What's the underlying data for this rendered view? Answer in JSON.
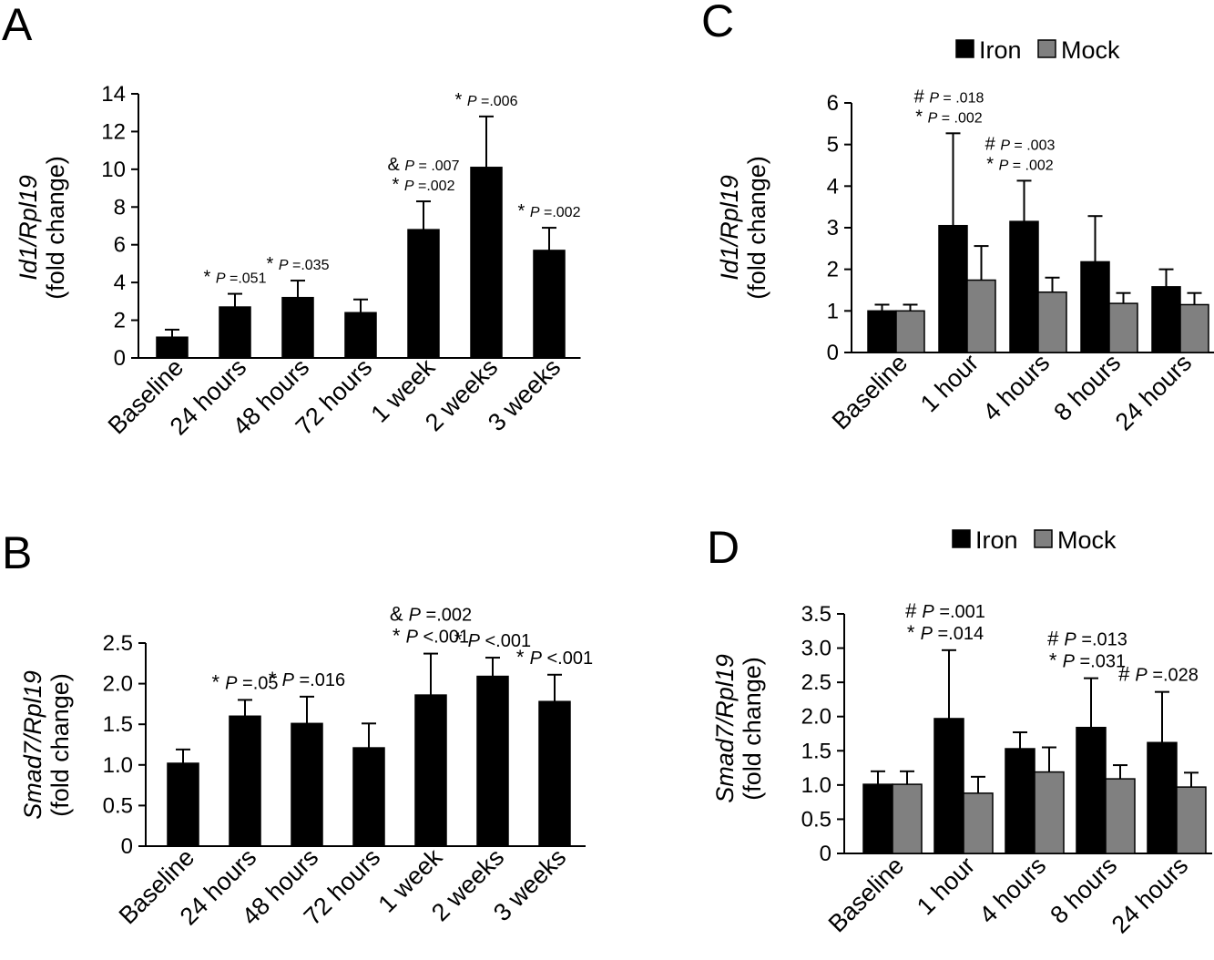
{
  "chart_data": [
    {
      "panel": "A",
      "type": "bar",
      "ylabel_gene": "Id1/Rpl19",
      "ylabel_unit": "(fold change)",
      "ylim": [
        0,
        14
      ],
      "yticks": [
        "0",
        "2",
        "4",
        "6",
        "8",
        "10",
        "12",
        "14"
      ],
      "categories": [
        "Baseline",
        "24 hours",
        "48 hours",
        "72 hours",
        "1 week",
        "2 weeks",
        "3 weeks"
      ],
      "series": [
        {
          "values": [
            1.1,
            2.7,
            3.2,
            2.4,
            6.8,
            10.1,
            5.7
          ],
          "errors": [
            0.4,
            0.7,
            0.9,
            0.7,
            1.5,
            2.7,
            1.2
          ]
        }
      ],
      "annotations": [
        {
          "index": 1,
          "lines": [
            {
              "sym": "*",
              "p": "P",
              "txt": "=.051"
            }
          ]
        },
        {
          "index": 2,
          "lines": [
            {
              "sym": "*",
              "p": "P",
              "txt": "=.035"
            }
          ]
        },
        {
          "index": 4,
          "lines": [
            {
              "sym": "&",
              "p": "P",
              "txt": "= .007"
            },
            {
              "sym": "*",
              "p": "P",
              "txt": "=.002"
            }
          ]
        },
        {
          "index": 5,
          "lines": [
            {
              "sym": "*",
              "p": "P",
              "txt": "=.006"
            }
          ]
        },
        {
          "index": 6,
          "lines": [
            {
              "sym": "*",
              "p": "P",
              "txt": "=.002"
            }
          ]
        }
      ]
    },
    {
      "panel": "B",
      "type": "bar",
      "ylabel_gene": "Smad7/Rpl19",
      "ylabel_unit": "(fold change)",
      "ylim": [
        0,
        2.5
      ],
      "yticks": [
        "0",
        "0.5",
        "1.0",
        "1.5",
        "2.0",
        "2.5"
      ],
      "categories": [
        "Baseline",
        "24 hours",
        "48 hours",
        "72 hours",
        "1 week",
        "2 weeks",
        "3 weeks"
      ],
      "series": [
        {
          "values": [
            1.02,
            1.6,
            1.51,
            1.21,
            1.86,
            2.09,
            1.78
          ],
          "errors": [
            0.17,
            0.2,
            0.33,
            0.3,
            0.51,
            0.23,
            0.33
          ]
        }
      ],
      "annotations": [
        {
          "index": 1,
          "lines": [
            {
              "sym": "*",
              "p": "P",
              "txt": "=.05"
            }
          ]
        },
        {
          "index": 2,
          "lines": [
            {
              "sym": "*",
              "p": "P",
              "txt": "=.016"
            }
          ]
        },
        {
          "index": 4,
          "lines": [
            {
              "sym": "&",
              "p": "P",
              "txt": "=.002"
            },
            {
              "sym": "*",
              "p": "P",
              "txt": "<.001"
            }
          ]
        },
        {
          "index": 5,
          "lines": [
            {
              "sym": "*",
              "p": "P",
              "txt": "<.001"
            }
          ]
        },
        {
          "index": 6,
          "lines": [
            {
              "sym": "*",
              "p": "P",
              "txt": "<.001"
            }
          ]
        }
      ]
    },
    {
      "panel": "C",
      "type": "bar",
      "ylabel_gene": "Id1/Rpl19",
      "ylabel_unit": "(fold change)",
      "ylim": [
        0,
        6
      ],
      "yticks": [
        "0",
        "1",
        "2",
        "3",
        "4",
        "5",
        "6"
      ],
      "categories": [
        "Baseline",
        "1 hour",
        "4 hours",
        "8 hours",
        "24 hours"
      ],
      "legend": [
        "Iron",
        "Mock"
      ],
      "series": [
        {
          "name": "Iron",
          "color": "#000000",
          "values": [
            1.0,
            3.05,
            3.15,
            2.18,
            1.58
          ],
          "errors": [
            0.15,
            2.22,
            0.98,
            1.1,
            0.42
          ]
        },
        {
          "name": "Mock",
          "color": "#808080",
          "values": [
            1.0,
            1.74,
            1.45,
            1.18,
            1.15
          ],
          "errors": [
            0.15,
            0.82,
            0.35,
            0.25,
            0.28
          ]
        }
      ],
      "annotations": [
        {
          "index": 1,
          "lines": [
            {
              "sym": "#",
              "p": "P",
              "txt": "= .018"
            },
            {
              "sym": "*",
              "p": "P",
              "txt": "= .002"
            }
          ]
        },
        {
          "index": 2,
          "lines": [
            {
              "sym": "#",
              "p": "P",
              "txt": "= .003"
            },
            {
              "sym": "*",
              "p": "P",
              "txt": "= .002"
            }
          ]
        }
      ]
    },
    {
      "panel": "D",
      "type": "bar",
      "ylabel_gene": "Smad7/Rpl19",
      "ylabel_unit": "(fold change)",
      "ylim": [
        0,
        3.5
      ],
      "yticks": [
        "0",
        "0.5",
        "1.0",
        "1.5",
        "2.0",
        "2.5",
        "3.0",
        "3.5"
      ],
      "categories": [
        "Baseline",
        "1 hour",
        "4 hours",
        "8 hours",
        "24 hours"
      ],
      "legend": [
        "Iron",
        "Mock"
      ],
      "series": [
        {
          "name": "Iron",
          "color": "#000000",
          "values": [
            1.01,
            1.97,
            1.53,
            1.84,
            1.62
          ],
          "errors": [
            0.19,
            1.0,
            0.24,
            0.72,
            0.74
          ]
        },
        {
          "name": "Mock",
          "color": "#808080",
          "values": [
            1.01,
            0.88,
            1.19,
            1.09,
            0.97
          ],
          "errors": [
            0.19,
            0.24,
            0.36,
            0.2,
            0.21
          ]
        }
      ],
      "annotations": [
        {
          "index": 1,
          "lines": [
            {
              "sym": "#",
              "p": "P",
              "txt": "=.001"
            },
            {
              "sym": "*",
              "p": "P",
              "txt": "=.014"
            }
          ]
        },
        {
          "index": 3,
          "lines": [
            {
              "sym": "#",
              "p": "P",
              "txt": "=.013"
            },
            {
              "sym": "*",
              "p": "P",
              "txt": "=.031"
            }
          ]
        },
        {
          "index": 4,
          "lines": [
            {
              "sym": "#",
              "p": "P",
              "txt": "=.028"
            }
          ]
        }
      ]
    }
  ]
}
